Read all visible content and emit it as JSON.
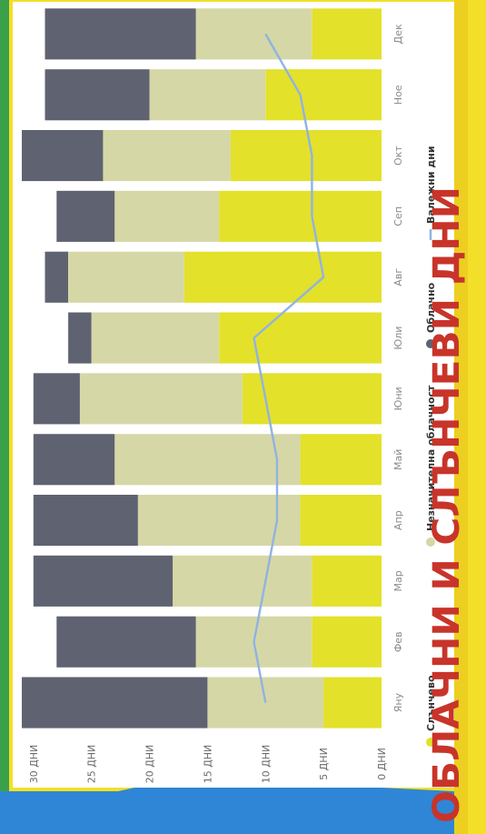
{
  "colors": {
    "sunny": "#e3e12a",
    "partly_cloudy": "#d6d7a6",
    "cloudy": "#5f6270",
    "wet_days": "#8fb3e3",
    "banner": "#f3df2a",
    "title_red": "#c8342a",
    "frame_blue": "#2f86d6",
    "frame_green": "#3ba04a"
  },
  "poster": {
    "title": "ОБЛАЧНИ И СЛЪНЧЕВИ ДНИ"
  },
  "chart_data": {
    "type": "bar",
    "stacked": true,
    "orientation": "vertical (image rotated 90° clockwise)",
    "categories": [
      "Яну",
      "Фев",
      "Мар",
      "Апр",
      "Май",
      "Юни",
      "Юли",
      "Авг",
      "Сеп",
      "Окт",
      "Ное",
      "Дек"
    ],
    "series": [
      {
        "name": "Слънчево",
        "kind": "bar",
        "values": [
          5,
          6,
          6,
          7,
          7,
          12,
          14,
          17,
          14,
          13,
          10,
          6
        ]
      },
      {
        "name": "Незначителна облачност",
        "kind": "bar",
        "values": [
          10,
          10,
          12,
          14,
          16,
          14,
          11,
          10,
          9,
          11,
          10,
          10
        ]
      },
      {
        "name": "Облачно",
        "kind": "bar",
        "values": [
          16,
          12,
          12,
          9,
          7,
          4,
          2,
          2,
          5,
          7,
          9,
          13
        ]
      },
      {
        "name": "Валежни дни",
        "kind": "line",
        "values": [
          10,
          11,
          10,
          9,
          9,
          10,
          11,
          5,
          6,
          6,
          7,
          10
        ]
      }
    ],
    "y_ticks": [
      "0 ДНИ",
      "5 ДНИ",
      "10 ДНИ",
      "15 ДНИ",
      "20 ДНИ",
      "25 ДНИ",
      "30 ДНИ"
    ],
    "ylim": [
      0,
      31
    ],
    "grid": false,
    "legend_position": "bottom"
  }
}
